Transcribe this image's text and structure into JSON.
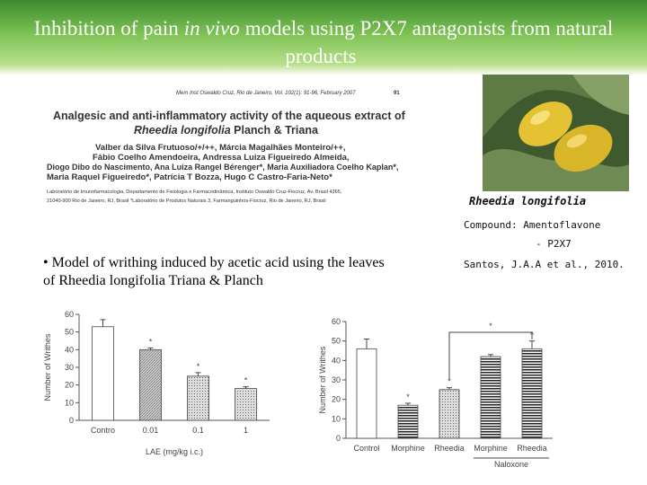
{
  "header": {
    "title_before": "Inhibition of pain",
    "title_italic": "in vivo",
    "title_after": "models using P2X7 antagonists from natural products"
  },
  "paper": {
    "journal": "Mem Inst Oswaldo Cruz, Rio de Janeiro, Vol. 102(1): 91-96, February 2007",
    "page": "91",
    "title_line1": "Analgesic and anti-inflammatory activity of the aqueous extract of",
    "title_species": "Rheedia longifolia",
    "title_rest": "Planch & Triana",
    "authors": [
      "Valber da Silva Frutuoso/+/++, Márcia Magalhães Monteiro/++,",
      "Fábio Coelho Amendoeira, Andressa Luiza Figueiredo Almeida,",
      "Diogo Dibo do Nascimento, Ana Luiza Rangel Bérenger*, Maria Auxiliadora Coelho Kaplan*,",
      "Maria Raquel Figueiredo*, Patrícia T Bozza, Hugo C Castro-Faria-Neto*"
    ],
    "affiliation": [
      "Laboratório de Imunofarmacologia, Departamento de Fisiologia e Farmacodinâmica, Instituto Oswaldo Cruz-Fiocruz, Av. Brasil 4365,",
      "21040-900 Rio de Janeiro, RJ, Brasil *Laboratório de Produtos Naturais 3, Farmanguinhos-Fiocruz, Rio de Janeiro, RJ, Brasil"
    ]
  },
  "plant": {
    "name": "Rheedia longifolia",
    "compound": "Compound: Amentoflavone",
    "target": "- P2X7",
    "reference": "Santos, J.A.A et al., 2010."
  },
  "bullet": "• Model of writhing induced by acetic acid using the leaves of Rheedia longifolia Triana & Planch",
  "chart_data": [
    {
      "type": "bar",
      "y_label": "Number of Writhes",
      "x_label": "LAE (mg/kg  i.c.)",
      "categories": [
        "Contro",
        "0.01",
        "0.1",
        "1"
      ],
      "values": [
        53,
        40,
        25,
        18
      ],
      "errors": [
        4,
        1,
        2,
        1
      ],
      "bar_styles": [
        "solid",
        "hatched",
        "dotted",
        "dotted"
      ],
      "annotations": [
        null,
        "*",
        "*",
        "*"
      ],
      "ylim": [
        0,
        60
      ],
      "yticks": [
        0,
        10,
        20,
        30,
        40,
        50,
        60
      ]
    },
    {
      "type": "bar",
      "y_label": "Number of Writhes",
      "categories": [
        "Control",
        "Morphine",
        "Rheedia",
        "Morphine",
        "Rheedia"
      ],
      "values": [
        46,
        17,
        25,
        42,
        46
      ],
      "errors": [
        5,
        1,
        1,
        1,
        4
      ],
      "bar_styles": [
        "solid",
        "striped",
        "dotted",
        "striped",
        "striped"
      ],
      "annotations": [
        null,
        "*",
        "*",
        null,
        "^"
      ],
      "bracket": {
        "from": 2,
        "to": 4,
        "label": "*"
      },
      "group": {
        "label": "Naloxone",
        "from": 3,
        "to": 4
      },
      "ylim": [
        0,
        60
      ],
      "yticks": [
        0,
        10,
        20,
        30,
        40,
        50,
        60
      ]
    }
  ]
}
